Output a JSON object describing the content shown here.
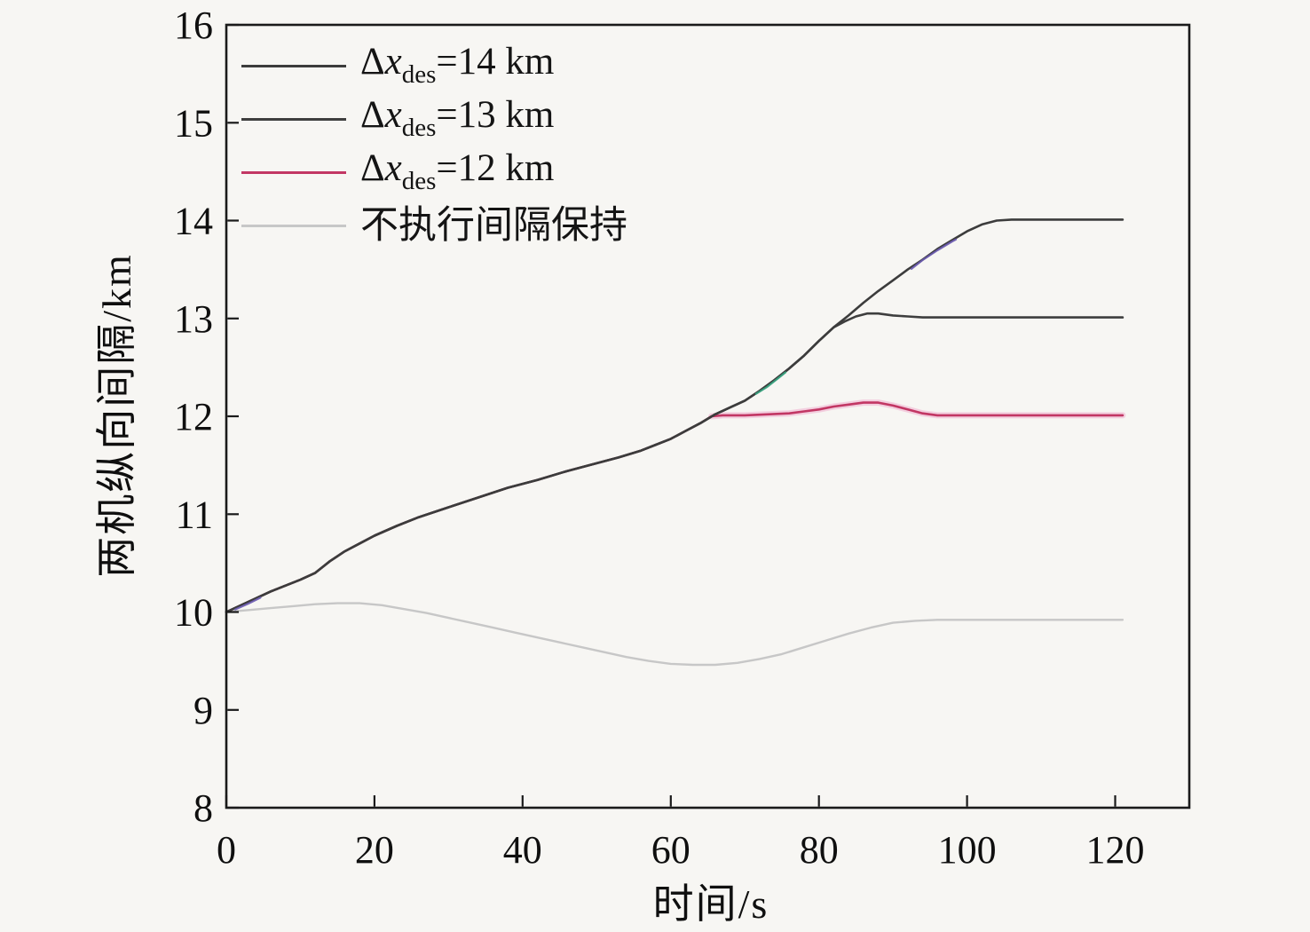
{
  "figure": {
    "background": "#f7f6f3",
    "frame_color": "#1a1a1a",
    "tick_color": "#1a1a1a",
    "text_color": "#0f0f0f"
  },
  "chart_data": {
    "type": "line",
    "title": "",
    "xlabel": "时间/s",
    "ylabel": "两机纵向间隔/km",
    "xlim": [
      0,
      130
    ],
    "ylim": [
      8,
      16
    ],
    "xticks": [
      0,
      20,
      40,
      60,
      80,
      100,
      120
    ],
    "yticks": [
      8,
      9,
      10,
      11,
      12,
      13,
      14,
      15,
      16
    ],
    "grid": false,
    "legend_position": "top-left",
    "series": [
      {
        "name": "dx-des-14km",
        "label": {
          "pre": "Δ",
          "it": "x",
          "sub": "des",
          "rest": "=14 km"
        },
        "color": "#3c3c3c",
        "width": 2.6,
        "points": [
          [
            0,
            10.0
          ],
          [
            2,
            10.07
          ],
          [
            4,
            10.14
          ],
          [
            6,
            10.21
          ],
          [
            8,
            10.27
          ],
          [
            10,
            10.33
          ],
          [
            12,
            10.4
          ],
          [
            14,
            10.52
          ],
          [
            16,
            10.62
          ],
          [
            18,
            10.7
          ],
          [
            20,
            10.78
          ],
          [
            23,
            10.88
          ],
          [
            26,
            10.97
          ],
          [
            30,
            11.07
          ],
          [
            34,
            11.17
          ],
          [
            38,
            11.27
          ],
          [
            42,
            11.35
          ],
          [
            46,
            11.44
          ],
          [
            50,
            11.52
          ],
          [
            53,
            11.58
          ],
          [
            56,
            11.65
          ],
          [
            58,
            11.71
          ],
          [
            60,
            11.77
          ],
          [
            62,
            11.85
          ],
          [
            64,
            11.93
          ],
          [
            66,
            12.02
          ],
          [
            68,
            12.09
          ],
          [
            70,
            12.16
          ],
          [
            72,
            12.26
          ],
          [
            74,
            12.37
          ],
          [
            76,
            12.49
          ],
          [
            78,
            12.62
          ],
          [
            80,
            12.77
          ],
          [
            82,
            12.91
          ],
          [
            84,
            13.03
          ],
          [
            86,
            13.16
          ],
          [
            88,
            13.28
          ],
          [
            90,
            13.39
          ],
          [
            92,
            13.5
          ],
          [
            94,
            13.6
          ],
          [
            96,
            13.71
          ],
          [
            98,
            13.8
          ],
          [
            100,
            13.89
          ],
          [
            102,
            13.96
          ],
          [
            104,
            14.0
          ],
          [
            106,
            14.01
          ],
          [
            121,
            14.01
          ]
        ]
      },
      {
        "name": "dx-des-13km",
        "label": {
          "pre": "Δ",
          "it": "x",
          "sub": "des",
          "rest": "=13 km"
        },
        "color": "#3e3e3e",
        "width": 2.6,
        "points": [
          [
            0,
            10.0
          ],
          [
            2,
            10.07
          ],
          [
            4,
            10.14
          ],
          [
            6,
            10.21
          ],
          [
            8,
            10.27
          ],
          [
            10,
            10.33
          ],
          [
            12,
            10.4
          ],
          [
            14,
            10.52
          ],
          [
            16,
            10.62
          ],
          [
            18,
            10.7
          ],
          [
            20,
            10.78
          ],
          [
            23,
            10.88
          ],
          [
            26,
            10.97
          ],
          [
            30,
            11.07
          ],
          [
            34,
            11.17
          ],
          [
            38,
            11.27
          ],
          [
            42,
            11.35
          ],
          [
            46,
            11.44
          ],
          [
            50,
            11.52
          ],
          [
            53,
            11.58
          ],
          [
            56,
            11.65
          ],
          [
            58,
            11.71
          ],
          [
            60,
            11.77
          ],
          [
            62,
            11.85
          ],
          [
            64,
            11.93
          ],
          [
            66,
            12.02
          ],
          [
            68,
            12.09
          ],
          [
            70,
            12.16
          ],
          [
            72,
            12.26
          ],
          [
            74,
            12.37
          ],
          [
            76,
            12.49
          ],
          [
            78,
            12.62
          ],
          [
            80,
            12.77
          ],
          [
            82,
            12.91
          ],
          [
            83.5,
            12.97
          ],
          [
            85,
            13.02
          ],
          [
            86.5,
            13.05
          ],
          [
            88,
            13.05
          ],
          [
            90,
            13.03
          ],
          [
            92,
            13.02
          ],
          [
            94,
            13.01
          ],
          [
            121,
            13.01
          ]
        ]
      },
      {
        "name": "dx-des-12km",
        "label": {
          "pre": "Δ",
          "it": "x",
          "sub": "des",
          "rest": "=12 km"
        },
        "color": "#c23764",
        "halo_color": "#f2c8da",
        "halo_width": 7,
        "halo_from_t": 65.5,
        "width": 2.6,
        "points": [
          [
            0,
            10.0
          ],
          [
            2,
            10.07
          ],
          [
            4,
            10.14
          ],
          [
            6,
            10.21
          ],
          [
            8,
            10.27
          ],
          [
            10,
            10.33
          ],
          [
            12,
            10.4
          ],
          [
            14,
            10.52
          ],
          [
            16,
            10.62
          ],
          [
            18,
            10.7
          ],
          [
            20,
            10.78
          ],
          [
            23,
            10.88
          ],
          [
            26,
            10.97
          ],
          [
            30,
            11.07
          ],
          [
            34,
            11.17
          ],
          [
            38,
            11.27
          ],
          [
            42,
            11.35
          ],
          [
            46,
            11.44
          ],
          [
            50,
            11.52
          ],
          [
            53,
            11.58
          ],
          [
            56,
            11.65
          ],
          [
            58,
            11.71
          ],
          [
            60,
            11.77
          ],
          [
            62,
            11.85
          ],
          [
            64,
            11.93
          ],
          [
            65.5,
            12.0
          ],
          [
            67,
            12.01
          ],
          [
            70,
            12.01
          ],
          [
            73,
            12.02
          ],
          [
            76,
            12.03
          ],
          [
            78,
            12.05
          ],
          [
            80,
            12.07
          ],
          [
            82,
            12.1
          ],
          [
            84,
            12.12
          ],
          [
            86,
            12.14
          ],
          [
            88,
            12.14
          ],
          [
            90,
            12.11
          ],
          [
            92,
            12.07
          ],
          [
            94,
            12.03
          ],
          [
            96,
            12.01
          ],
          [
            98,
            12.01
          ],
          [
            121,
            12.01
          ]
        ]
      },
      {
        "name": "no-interval-keeping",
        "label": {
          "pre": "不执行间隔保持",
          "it": "",
          "sub": "",
          "rest": ""
        },
        "color": "#c7c7c7",
        "width": 2.4,
        "points": [
          [
            0,
            10.0
          ],
          [
            3,
            10.02
          ],
          [
            6,
            10.04
          ],
          [
            9,
            10.06
          ],
          [
            12,
            10.08
          ],
          [
            15,
            10.09
          ],
          [
            18,
            10.09
          ],
          [
            21,
            10.07
          ],
          [
            24,
            10.03
          ],
          [
            27,
            9.99
          ],
          [
            30,
            9.94
          ],
          [
            33,
            9.89
          ],
          [
            36,
            9.84
          ],
          [
            39,
            9.79
          ],
          [
            42,
            9.74
          ],
          [
            45,
            9.69
          ],
          [
            48,
            9.64
          ],
          [
            51,
            9.59
          ],
          [
            54,
            9.54
          ],
          [
            57,
            9.5
          ],
          [
            60,
            9.47
          ],
          [
            63,
            9.46
          ],
          [
            66,
            9.46
          ],
          [
            69,
            9.48
          ],
          [
            72,
            9.52
          ],
          [
            75,
            9.57
          ],
          [
            78,
            9.64
          ],
          [
            81,
            9.71
          ],
          [
            84,
            9.78
          ],
          [
            87,
            9.84
          ],
          [
            90,
            9.89
          ],
          [
            93,
            9.91
          ],
          [
            96,
            9.92
          ],
          [
            100,
            9.92
          ],
          [
            121,
            9.92
          ]
        ]
      }
    ],
    "color_tints": [
      {
        "name": "green-overlap-tint",
        "color": "#35a37e",
        "width": 2.2,
        "dy": 1.2,
        "points": [
          [
            71.5,
            12.24
          ],
          [
            73,
            12.31
          ],
          [
            74.5,
            12.4
          ],
          [
            75.5,
            12.46
          ]
        ]
      },
      {
        "name": "blue-overlap-tint",
        "color": "#6a5ab0",
        "width": 2.2,
        "dy": 1.5,
        "points": [
          [
            92.5,
            13.52
          ],
          [
            94,
            13.61
          ],
          [
            96,
            13.71
          ],
          [
            98,
            13.8
          ],
          [
            98.5,
            13.82
          ]
        ]
      },
      {
        "name": "blue-start-tint",
        "color": "#6a5ab0",
        "width": 2.2,
        "dy": 1.5,
        "points": [
          [
            1.2,
            10.04
          ],
          [
            3,
            10.1
          ],
          [
            4.6,
            10.16
          ]
        ]
      }
    ]
  }
}
